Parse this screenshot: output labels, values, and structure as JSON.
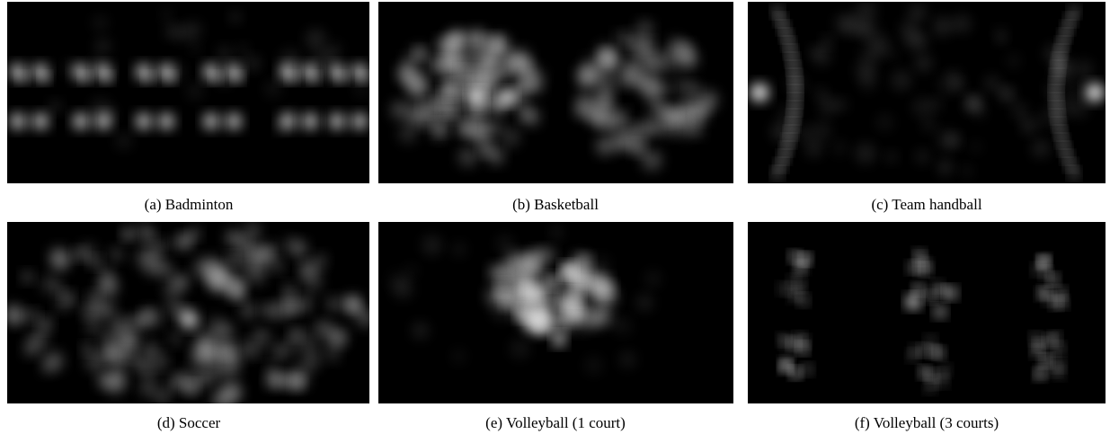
{
  "figures": [
    {
      "caption": "(a) Badminton"
    },
    {
      "caption": "(b) Basketball"
    },
    {
      "caption": "(c) Team handball"
    },
    {
      "caption": "(d) Soccer"
    },
    {
      "caption": "(e) Volleyball (1 court)"
    },
    {
      "caption": "(f) Volleyball (3 courts)"
    }
  ]
}
